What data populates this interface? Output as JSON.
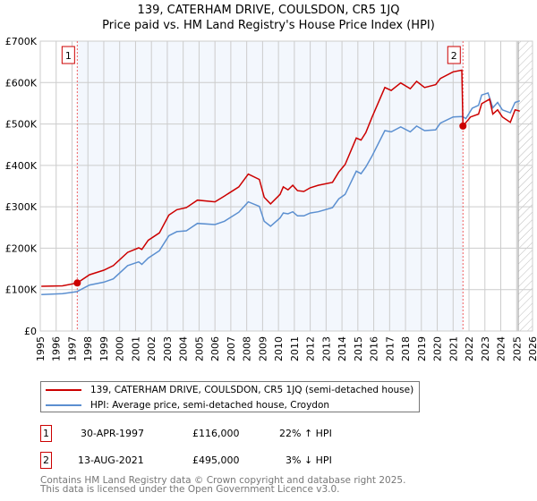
{
  "chart_data": {
    "type": "line",
    "title": "139, CATERHAM DRIVE, COULSDON, CR5 1JQ",
    "subtitle": "Price paid vs. HM Land Registry's House Price Index (HPI)",
    "xlabel": "",
    "ylabel": "",
    "xlim": [
      1995,
      2026
    ],
    "ylim": [
      0,
      700000
    ],
    "y_ticks": [
      0,
      100000,
      200000,
      300000,
      400000,
      500000,
      600000,
      700000
    ],
    "y_tick_labels": [
      "£0",
      "£100K",
      "£200K",
      "£300K",
      "£400K",
      "£500K",
      "£600K",
      "£700K"
    ],
    "x_ticks": [
      1995,
      1996,
      1997,
      1998,
      1999,
      2000,
      2001,
      2002,
      2003,
      2004,
      2005,
      2006,
      2007,
      2008,
      2009,
      2010,
      2011,
      2012,
      2013,
      2014,
      2015,
      2016,
      2017,
      2018,
      2019,
      2020,
      2021,
      2022,
      2023,
      2024,
      2025,
      2026
    ],
    "grid": true,
    "shaded_period": [
      1997.33,
      2021.62
    ],
    "forecast_hatch_from": 2025.1,
    "series": [
      {
        "name": "139, CATERHAM DRIVE, COULSDON, CR5 1JQ (semi-detached house)",
        "color": "#cc0000",
        "x": [
          1995.07,
          1996.4,
          1997.33,
          1998.1,
          1999.0,
          1999.6,
          2000.5,
          2001.2,
          2001.4,
          2001.8,
          2002.5,
          2003.1,
          2003.6,
          2004.2,
          2004.9,
          2006.0,
          2006.6,
          2007.5,
          2008.1,
          2008.8,
          2009.1,
          2009.5,
          2010.1,
          2010.3,
          2010.6,
          2010.9,
          2011.2,
          2011.6,
          2012.0,
          2012.5,
          2013.4,
          2013.8,
          2014.2,
          2014.9,
          2015.2,
          2015.5,
          2015.9,
          2016.7,
          2017.1,
          2017.7,
          2018.3,
          2018.7,
          2019.2,
          2019.9,
          2020.2,
          2021.0,
          2021.55,
          2021.62,
          2022.1,
          2022.6,
          2022.8,
          2023.3,
          2023.5,
          2023.8,
          2024.1,
          2024.6,
          2024.9,
          2025.2
        ],
        "y": [
          108000,
          109000,
          116000,
          136000,
          147000,
          158000,
          190000,
          201000,
          197000,
          219000,
          237000,
          280000,
          293000,
          298000,
          316000,
          312000,
          326000,
          348000,
          379000,
          366000,
          323000,
          307000,
          330000,
          348000,
          341000,
          352000,
          339000,
          337000,
          346000,
          352000,
          359000,
          384000,
          402000,
          466000,
          461000,
          479000,
          517000,
          588000,
          581000,
          599000,
          585000,
          603000,
          588000,
          595000,
          610000,
          626000,
          630000,
          495000,
          517000,
          524000,
          549000,
          560000,
          524000,
          534000,
          517000,
          504000,
          534000,
          531000
        ]
      },
      {
        "name": "HPI: Average price, semi-detached house, Croydon",
        "color": "#5b8fd0",
        "x": [
          1995.07,
          1996.4,
          1997.3,
          1998.1,
          1999.0,
          1999.6,
          2000.5,
          2001.2,
          2001.4,
          2001.8,
          2002.5,
          2003.1,
          2003.6,
          2004.2,
          2004.9,
          2006.0,
          2006.6,
          2007.5,
          2008.1,
          2008.8,
          2009.1,
          2009.5,
          2010.1,
          2010.3,
          2010.6,
          2010.9,
          2011.2,
          2011.6,
          2012.0,
          2012.5,
          2013.4,
          2013.8,
          2014.2,
          2014.9,
          2015.2,
          2015.5,
          2015.9,
          2016.7,
          2017.1,
          2017.7,
          2018.3,
          2018.7,
          2019.2,
          2019.9,
          2020.2,
          2021.0,
          2021.6,
          2021.8,
          2022.2,
          2022.6,
          2022.8,
          2023.2,
          2023.5,
          2023.8,
          2024.1,
          2024.6,
          2024.9,
          2025.2
        ],
        "y": [
          88000,
          90000,
          95000,
          111000,
          118000,
          126000,
          158000,
          167000,
          161000,
          176000,
          194000,
          230000,
          240000,
          242000,
          260000,
          257000,
          265000,
          287000,
          312000,
          301000,
          265000,
          253000,
          273000,
          285000,
          283000,
          288000,
          278000,
          278000,
          285000,
          288000,
          298000,
          319000,
          330000,
          386000,
          380000,
          396000,
          423000,
          484000,
          481000,
          493000,
          481000,
          495000,
          484000,
          486000,
          502000,
          517000,
          518000,
          513000,
          538000,
          545000,
          570000,
          575000,
          539000,
          552000,
          534000,
          527000,
          552000,
          556000
        ]
      }
    ],
    "annotations": [
      {
        "label": "1",
        "x": 1997.33,
        "y": 116000
      },
      {
        "label": "2",
        "x": 2021.62,
        "y": 495000
      }
    ],
    "legend": "below"
  },
  "legend": {
    "property": "139, CATERHAM DRIVE, COULSDON, CR5 1JQ (semi-detached house)",
    "hpi": "HPI: Average price, semi-detached house, Croydon"
  },
  "transactions": [
    {
      "num": "1",
      "date": "30-APR-1997",
      "price": "£116,000",
      "hpi": "22% ↑ HPI"
    },
    {
      "num": "2",
      "date": "13-AUG-2021",
      "price": "£495,000",
      "hpi": "3% ↓ HPI"
    }
  ],
  "footer": {
    "line1": "Contains HM Land Registry data © Crown copyright and database right 2025.",
    "line2": "This data is licensed under the Open Government Licence v3.0."
  }
}
